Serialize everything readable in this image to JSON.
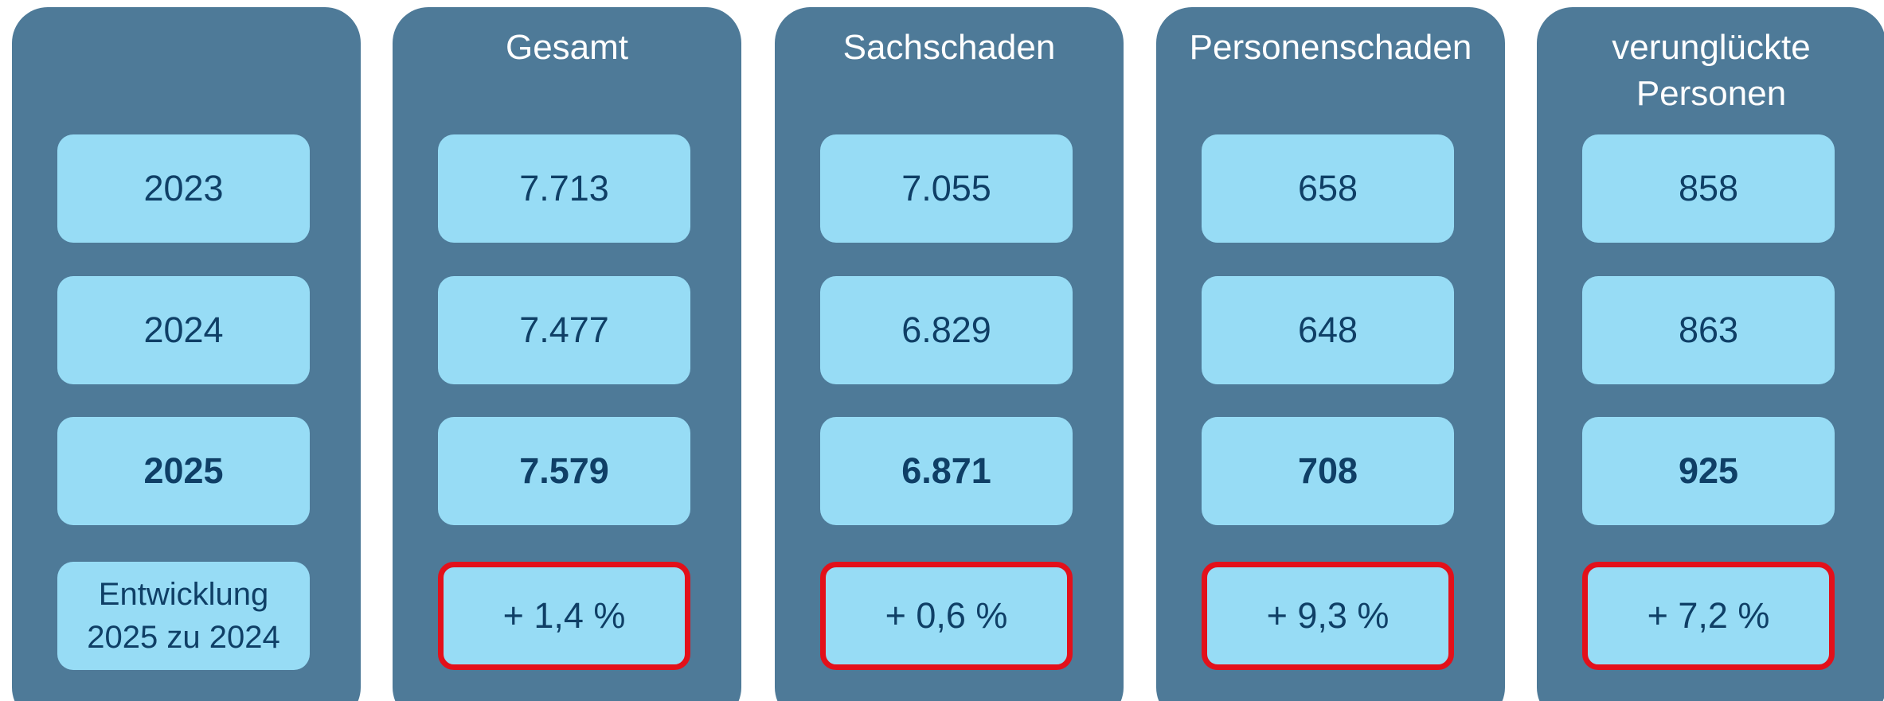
{
  "row_labels": [
    "2023",
    "2024",
    "2025",
    "Entwicklung 2025 zu 2024"
  ],
  "columns": [
    {
      "header": "Gesamt",
      "values": [
        "7.713",
        "7.477",
        "7.579",
        "+ 1,4 %"
      ]
    },
    {
      "header": "Sachschaden",
      "values": [
        "7.055",
        "6.829",
        "6.871",
        "+ 0,6 %"
      ]
    },
    {
      "header": "Personenschaden",
      "values": [
        "658",
        "648",
        "708",
        "+ 9,3 %"
      ]
    },
    {
      "header": "verunglückte Personen",
      "values": [
        "858",
        "863",
        "925",
        "+ 7,2 %"
      ]
    }
  ]
}
